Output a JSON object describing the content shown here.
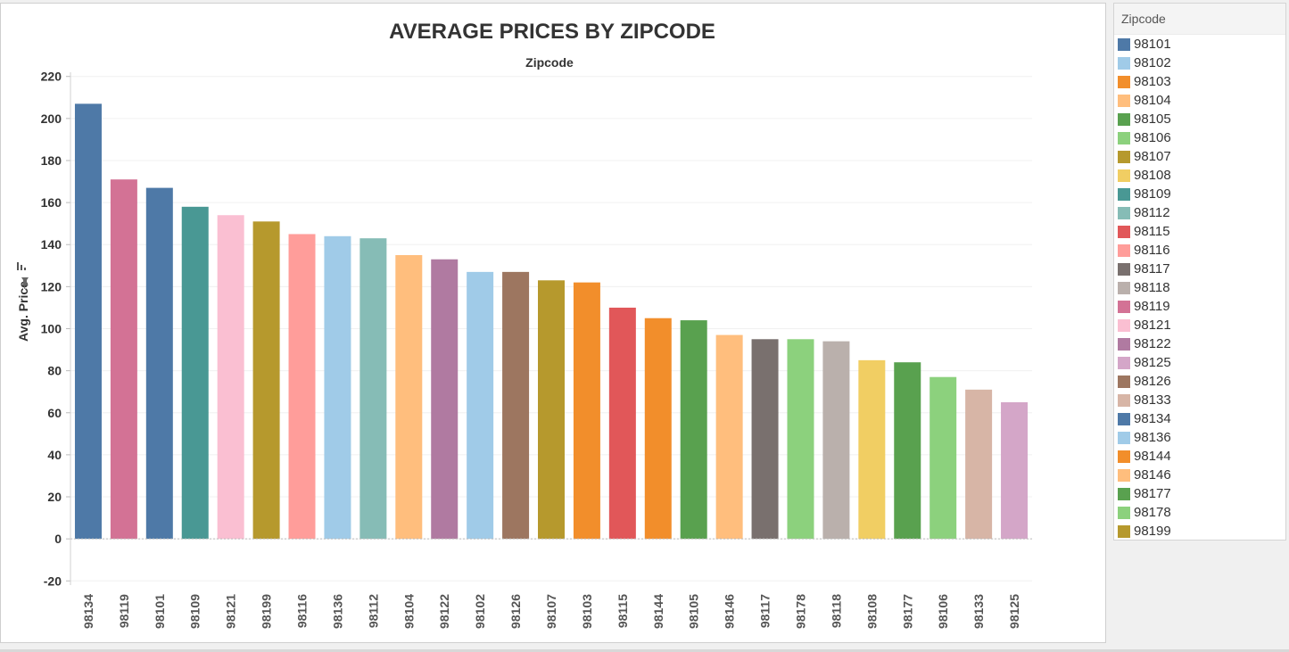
{
  "chart_data": {
    "type": "bar",
    "title": "AVERAGE PRICES BY ZIPCODE",
    "column_header": "Zipcode",
    "ylabel": "Avg. Price",
    "ylim": [
      -22,
      222
    ],
    "yticks": [
      220,
      200,
      180,
      160,
      140,
      120,
      100,
      80,
      60,
      40,
      20,
      0,
      -20
    ],
    "grid": true,
    "legend_position": "right",
    "categories": [
      "98134",
      "98119",
      "98101",
      "98109",
      "98121",
      "98199",
      "98116",
      "98136",
      "98112",
      "98104",
      "98122",
      "98102",
      "98126",
      "98107",
      "98103",
      "98115",
      "98144",
      "98105",
      "98146",
      "98117",
      "98178",
      "98118",
      "98108",
      "98177",
      "98106",
      "98133",
      "98125"
    ],
    "values": [
      207,
      171,
      167,
      158,
      154,
      151,
      145,
      144,
      143,
      135,
      133,
      127,
      127,
      123,
      122,
      110,
      105,
      104,
      97,
      95,
      95,
      94,
      85,
      84,
      77,
      71,
      65
    ],
    "colors": [
      "#4e79a7",
      "#d37295",
      "#4e79a7",
      "#499894",
      "#fabfd2",
      "#b6992d",
      "#ff9d9a",
      "#a0cbe8",
      "#86bcb6",
      "#ffbe7d",
      "#b07aa1",
      "#a0cbe8",
      "#9d7660",
      "#b6992d",
      "#f28e2b",
      "#e15759",
      "#f28e2b",
      "#59a14f",
      "#ffbe7d",
      "#79706e",
      "#8cd17d",
      "#bab0ac",
      "#f1ce63",
      "#59a14f",
      "#8cd17d",
      "#d7b5a6",
      "#d4a6c8"
    ]
  },
  "legend": {
    "title": "Zipcode",
    "items": [
      {
        "label": "98101",
        "color": "#4e79a7"
      },
      {
        "label": "98102",
        "color": "#a0cbe8"
      },
      {
        "label": "98103",
        "color": "#f28e2b"
      },
      {
        "label": "98104",
        "color": "#ffbe7d"
      },
      {
        "label": "98105",
        "color": "#59a14f"
      },
      {
        "label": "98106",
        "color": "#8cd17d"
      },
      {
        "label": "98107",
        "color": "#b6992d"
      },
      {
        "label": "98108",
        "color": "#f1ce63"
      },
      {
        "label": "98109",
        "color": "#499894"
      },
      {
        "label": "98112",
        "color": "#86bcb6"
      },
      {
        "label": "98115",
        "color": "#e15759"
      },
      {
        "label": "98116",
        "color": "#ff9d9a"
      },
      {
        "label": "98117",
        "color": "#79706e"
      },
      {
        "label": "98118",
        "color": "#bab0ac"
      },
      {
        "label": "98119",
        "color": "#d37295"
      },
      {
        "label": "98121",
        "color": "#fabfd2"
      },
      {
        "label": "98122",
        "color": "#b07aa1"
      },
      {
        "label": "98125",
        "color": "#d4a6c8"
      },
      {
        "label": "98126",
        "color": "#9d7660"
      },
      {
        "label": "98133",
        "color": "#d7b5a6"
      },
      {
        "label": "98134",
        "color": "#4e79a7"
      },
      {
        "label": "98136",
        "color": "#a0cbe8"
      },
      {
        "label": "98144",
        "color": "#f28e2b"
      },
      {
        "label": "98146",
        "color": "#ffbe7d"
      },
      {
        "label": "98177",
        "color": "#59a14f"
      },
      {
        "label": "98178",
        "color": "#8cd17d"
      },
      {
        "label": "98199",
        "color": "#b6992d"
      }
    ]
  }
}
